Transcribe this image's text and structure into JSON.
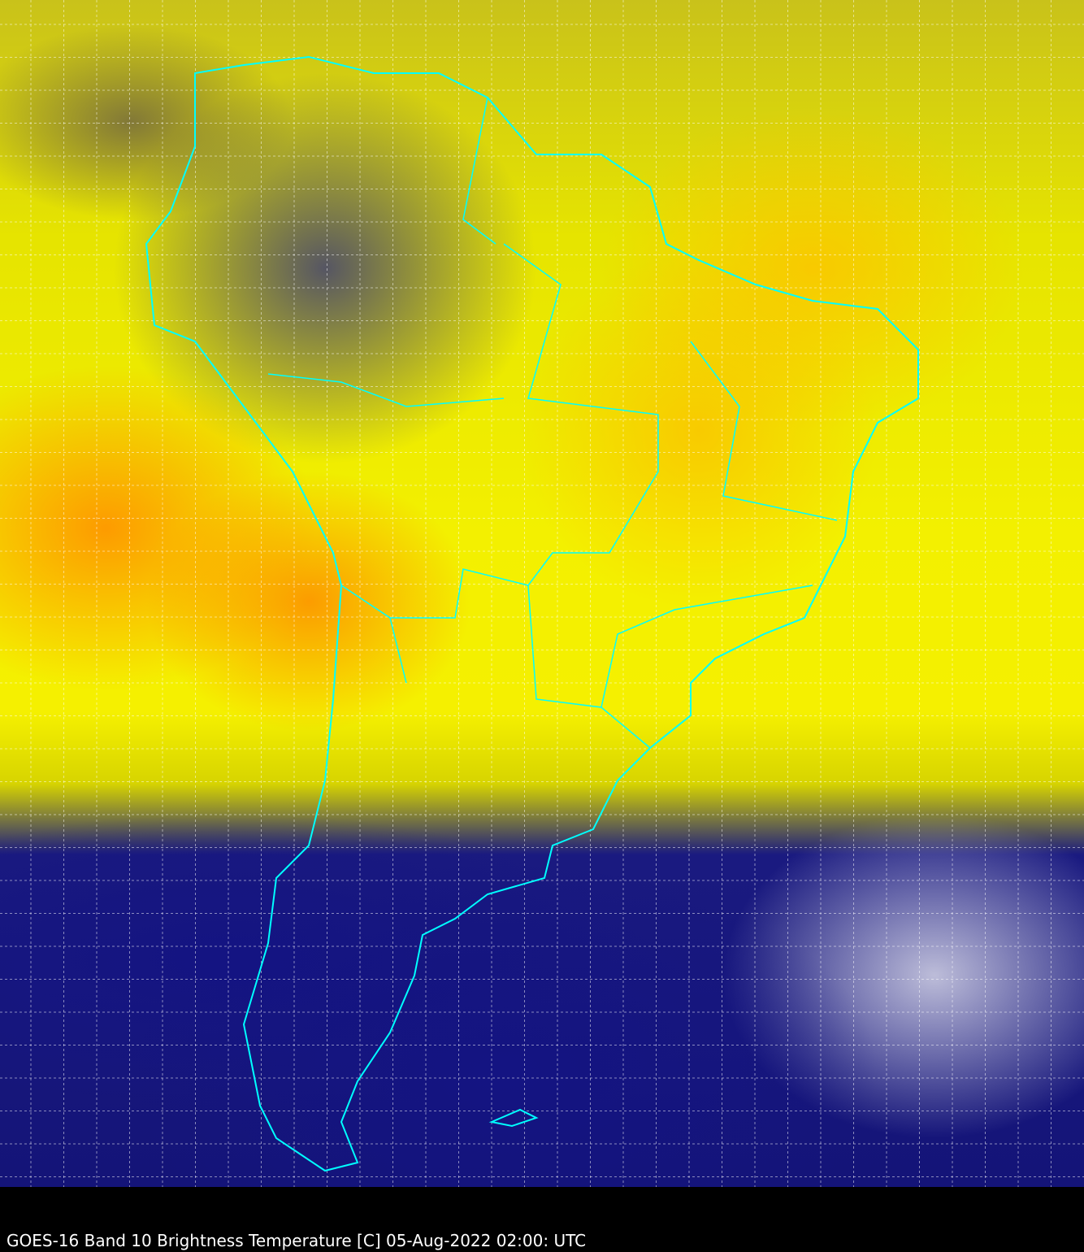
{
  "caption": "GOES-16 Band 10  Brightness Temperature [C] 05-Aug-2022 02:00: UTC",
  "colors": {
    "border_lines": "#00ffff",
    "grid_lines": "#ffffff",
    "warm": "#ffff00",
    "very_warm": "#ff9000",
    "cold": "#141478",
    "coldest": "#2e9e7a",
    "caption_bar": "#000000"
  }
}
